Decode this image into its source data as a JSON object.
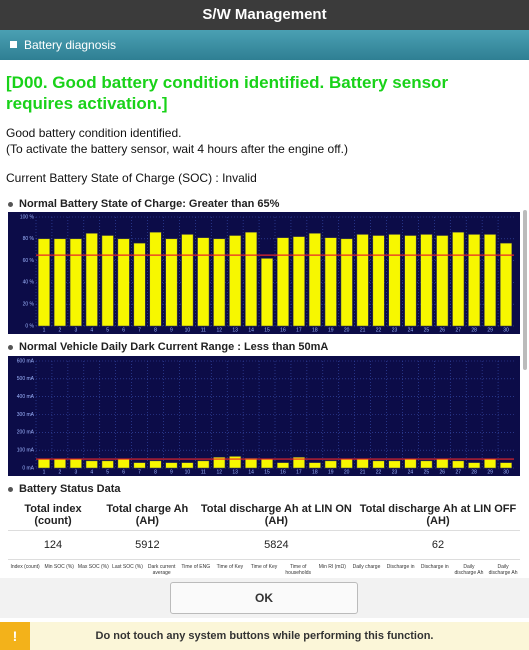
{
  "header": {
    "title": "S/W Management"
  },
  "section": {
    "title": "Battery diagnosis"
  },
  "message": {
    "headline": "[D00. Good battery condition identified. Battery sensor requires activation.]",
    "lines": [
      "Good battery condition identified.",
      "(To activate the battery sensor, wait 4 hours after the engine off.)"
    ],
    "soc_status": "Current Battery State of Charge (SOC) : Invalid"
  },
  "chart_data": [
    {
      "type": "bar",
      "title": "Normal Battery State of Charge: Greater than 65%",
      "categories": [
        "1",
        "2",
        "3",
        "4",
        "5",
        "6",
        "7",
        "8",
        "9",
        "10",
        "11",
        "12",
        "13",
        "14",
        "15",
        "16",
        "17",
        "18",
        "19",
        "20",
        "21",
        "22",
        "23",
        "24",
        "25",
        "26",
        "27",
        "28",
        "29",
        "30"
      ],
      "values": [
        80,
        80,
        80,
        85,
        83,
        80,
        76,
        86,
        80,
        84,
        81,
        80,
        83,
        86,
        62,
        81,
        82,
        85,
        81,
        80,
        84,
        83,
        84,
        83,
        84,
        83,
        86,
        84,
        84,
        76
      ],
      "ylim": [
        0,
        100
      ],
      "yticks": [
        {
          "value": 0,
          "label": "0 %"
        },
        {
          "value": 20,
          "label": "20 %"
        },
        {
          "value": 40,
          "label": "40 %"
        },
        {
          "value": 60,
          "label": "60 %"
        },
        {
          "value": 80,
          "label": "80 %"
        },
        {
          "value": 100,
          "label": "100 %"
        }
      ],
      "threshold": 65,
      "color": "#f7f700",
      "threshold_color": "#e8262a",
      "grid": true
    },
    {
      "type": "bar",
      "title": "Normal Vehicle Daily Dark Current Range : Less than 50mA",
      "categories": [
        "1",
        "2",
        "3",
        "4",
        "5",
        "6",
        "7",
        "8",
        "9",
        "10",
        "11",
        "12",
        "13",
        "14",
        "15",
        "16",
        "17",
        "18",
        "19",
        "20",
        "21",
        "22",
        "23",
        "24",
        "25",
        "26",
        "27",
        "28",
        "29",
        "30"
      ],
      "values": [
        50,
        50,
        50,
        40,
        40,
        50,
        30,
        40,
        30,
        30,
        40,
        60,
        65,
        55,
        50,
        30,
        60,
        30,
        40,
        50,
        50,
        40,
        40,
        50,
        40,
        50,
        40,
        30,
        50,
        30
      ],
      "ylim": [
        0,
        600
      ],
      "yticks": [
        {
          "value": 0,
          "label": "0 mA"
        },
        {
          "value": 100,
          "label": "100 mA"
        },
        {
          "value": 200,
          "label": "200 mA"
        },
        {
          "value": 300,
          "label": "300 mA"
        },
        {
          "value": 400,
          "label": "400 mA"
        },
        {
          "value": 500,
          "label": "500 mA"
        },
        {
          "value": 600,
          "label": "600 mA"
        }
      ],
      "threshold": 50,
      "color": "#f7f700",
      "threshold_color": "#e8262a",
      "grid": true
    }
  ],
  "table": {
    "title": "Battery Status Data",
    "headers": [
      "Total index (count)",
      "Total charge Ah (AH)",
      "Total discharge Ah at LIN ON (AH)",
      "Total discharge Ah at LIN OFF (AH)"
    ],
    "rows": [
      [
        "124",
        "5912",
        "5824",
        "62"
      ]
    ],
    "sub_headers": [
      "Index (count)",
      "Min SOC (%)",
      "Max SOC (%)",
      "Last SOC (%)",
      "Dark current average",
      "Time of ENG",
      "Time of Key",
      "Time of Key",
      "Time of households",
      "Min RI (mΩ)",
      "Daily charge",
      "Discharge in",
      "Discharge in",
      "Daily discharge Ah",
      "Daily discharge Ah"
    ]
  },
  "buttons": {
    "ok": "OK"
  },
  "footer": {
    "warning": "Do not touch any system buttons while performing this function."
  }
}
